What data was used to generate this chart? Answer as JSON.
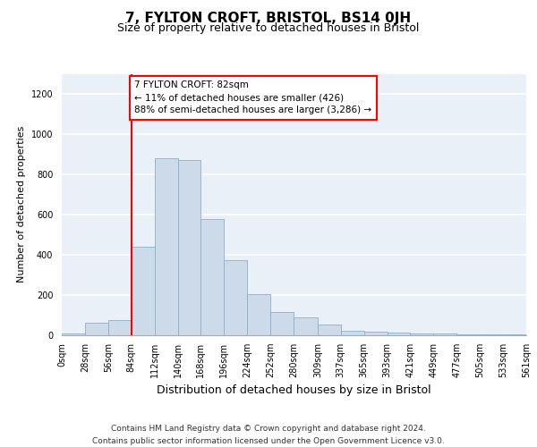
{
  "title": "7, FYLTON CROFT, BRISTOL, BS14 0JH",
  "subtitle": "Size of property relative to detached houses in Bristol",
  "xlabel": "Distribution of detached houses by size in Bristol",
  "ylabel": "Number of detached properties",
  "bar_color": "#ccdaea",
  "bar_edge_color": "#8ab0cc",
  "bin_labels": [
    "0sqm",
    "28sqm",
    "56sqm",
    "84sqm",
    "112sqm",
    "140sqm",
    "168sqm",
    "196sqm",
    "224sqm",
    "252sqm",
    "280sqm",
    "309sqm",
    "337sqm",
    "365sqm",
    "393sqm",
    "421sqm",
    "449sqm",
    "477sqm",
    "505sqm",
    "533sqm",
    "561sqm"
  ],
  "bar_heights": [
    10,
    62,
    75,
    440,
    878,
    870,
    580,
    375,
    205,
    115,
    90,
    55,
    22,
    18,
    12,
    10,
    8,
    5,
    5,
    5
  ],
  "red_line_x": 84,
  "annotation_text": "7 FYLTON CROFT: 82sqm\n← 11% of detached houses are smaller (426)\n88% of semi-detached houses are larger (3,286) →",
  "ylim": [
    0,
    1300
  ],
  "yticks": [
    0,
    200,
    400,
    600,
    800,
    1000,
    1200
  ],
  "footer": "Contains HM Land Registry data © Crown copyright and database right 2024.\nContains public sector information licensed under the Open Government Licence v3.0.",
  "bg_color": "#eaf0f8",
  "annotation_box_color": "white",
  "annotation_box_edge": "red",
  "title_fontsize": 11,
  "subtitle_fontsize": 9,
  "ylabel_fontsize": 8,
  "xlabel_fontsize": 9,
  "tick_fontsize": 7,
  "footer_fontsize": 6.5
}
